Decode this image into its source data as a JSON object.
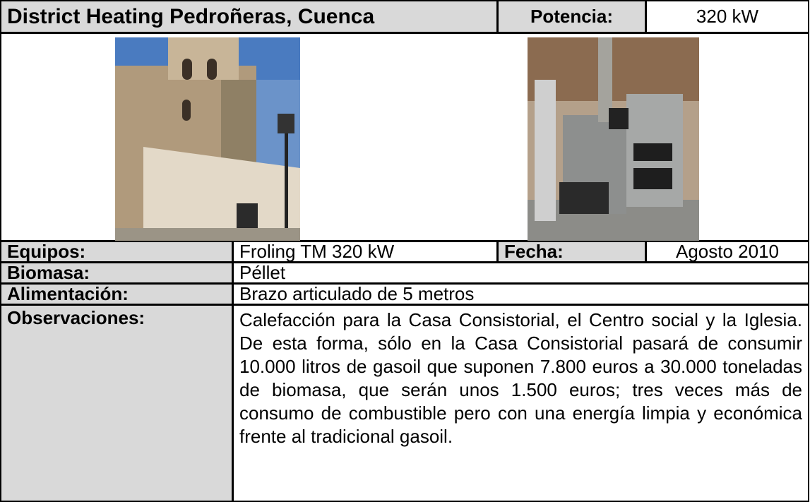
{
  "header": {
    "title": "District Heating Pedroñeras, Cuenca",
    "power_label": "Potencia:",
    "power_value": "320 kW"
  },
  "details": {
    "equipment_label": "Equipos:",
    "equipment_value": "Froling TM 320 kW",
    "date_label": "Fecha:",
    "date_value": "Agosto 2010",
    "biomass_label": "Biomasa:",
    "biomass_value": "Péllet",
    "feed_label": "Alimentación:",
    "feed_value": "Brazo articulado de 5 metros",
    "notes_label": "Observaciones:",
    "notes_value": "Calefacción para la Casa Consistorial, el Centro social y la Iglesia. De esta forma, sólo en la Casa Consistorial pasará de consumir 10.000 litros de gasoil que suponen 7.800 euros a 30.000 toneladas de biomasa, que serán unos 1.500 euros; tres veces más de consumo de combustible pero con una energía limpia y económica frente al tradicional gasoil."
  }
}
